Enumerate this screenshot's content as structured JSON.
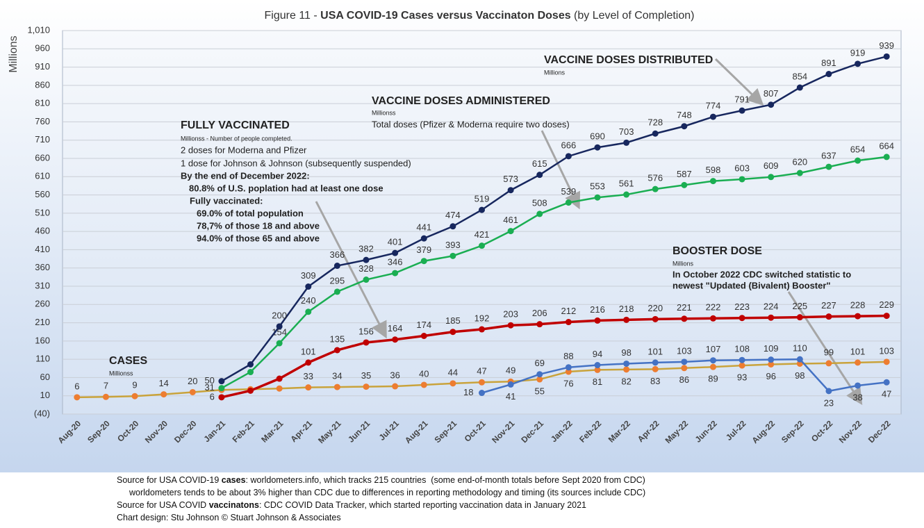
{
  "chart_data": {
    "type": "line",
    "title": [
      "Figure 11 - ",
      "USA COVID-19 Cases versus Vaccinaton Doses",
      " (by Level of Completion)"
    ],
    "y_label": "Millions",
    "categories": [
      "Aug-20",
      "Sep-20",
      "Oct-20",
      "Nov-20",
      "Dec-20",
      "Jan-21",
      "Feb-21",
      "Mar-21",
      "Apr-21",
      "May-21",
      "Jun-21",
      "Jul-21",
      "Aug-21",
      "Sep-21",
      "Oct-21",
      "Nov-21",
      "Dec-21",
      "Jan-22",
      "Feb-22",
      "Mar-22",
      "Apr-22",
      "May-22",
      "Jun-22",
      "Jul-22",
      "Aug-22",
      "Sep-22",
      "Oct-22",
      "Nov-22",
      "Dec-22"
    ],
    "ylim": [
      -40,
      1010
    ],
    "yticks": [
      {
        "value": -40,
        "label": "(40)"
      },
      10,
      60,
      110,
      160,
      210,
      260,
      310,
      360,
      410,
      460,
      510,
      560,
      610,
      660,
      710,
      760,
      810,
      860,
      910,
      960,
      {
        "value": 1010,
        "label": "1,010"
      }
    ],
    "grid": true,
    "series": [
      {
        "color": "#ed7d31",
        "line_color": "#c9a33b",
        "values": [
          6,
          7,
          9,
          14,
          20,
          26,
          28,
          30,
          33,
          34,
          35,
          36,
          40,
          44,
          47,
          49,
          55,
          76,
          81,
          82,
          83,
          86,
          89,
          93,
          96,
          98,
          99,
          101,
          103
        ],
        "value_labels": [
          "6",
          "7",
          "9",
          "14",
          "20",
          null,
          null,
          null,
          "33",
          "34",
          "35",
          "36",
          "40",
          "44",
          "47",
          "49",
          "55",
          "76",
          "81",
          "82",
          "83",
          "86",
          "89",
          "93",
          "96",
          "98",
          "99",
          "101",
          "103"
        ]
      },
      {
        "color": "#4472c4",
        "line_color": "#4472c4",
        "values": [
          null,
          null,
          null,
          null,
          null,
          null,
          null,
          null,
          null,
          null,
          null,
          null,
          null,
          null,
          18,
          41,
          69,
          88,
          94,
          98,
          101,
          103,
          107,
          108,
          109,
          110,
          23,
          38,
          47
        ],
        "value_labels": [
          null,
          null,
          null,
          null,
          null,
          null,
          null,
          null,
          null,
          null,
          null,
          null,
          null,
          null,
          "18",
          "41",
          "69",
          "88",
          "94",
          "98",
          "101",
          "103",
          "107",
          "108",
          "109",
          "110",
          "23",
          "38",
          "47"
        ]
      },
      {
        "color": "#c00000",
        "line_color": "#c00000",
        "values": [
          null,
          null,
          null,
          null,
          null,
          6,
          24,
          57,
          101,
          135,
          156,
          164,
          174,
          185,
          192,
          203,
          206,
          212,
          216,
          218,
          220,
          221,
          222,
          223,
          224,
          225,
          227,
          228,
          229
        ],
        "value_labels": [
          null,
          null,
          null,
          null,
          null,
          "6",
          null,
          null,
          "101",
          "135",
          "156",
          "164",
          "174",
          "185",
          "192",
          "203",
          "206",
          "212",
          "216",
          "218",
          "220",
          "221",
          "222",
          "223",
          "224",
          "225",
          "227",
          "228",
          "229"
        ]
      },
      {
        "color": "#1aae52",
        "line_color": "#1aae52",
        "values": [
          null,
          null,
          null,
          null,
          null,
          31,
          75,
          154,
          240,
          295,
          328,
          346,
          379,
          393,
          421,
          461,
          508,
          539,
          553,
          561,
          576,
          587,
          598,
          603,
          609,
          620,
          637,
          654,
          664
        ],
        "value_labels": [
          null,
          null,
          null,
          null,
          null,
          "31",
          null,
          "154",
          "240",
          "295",
          "328",
          "346",
          "379",
          "393",
          "421",
          "461",
          "508",
          "539",
          "553",
          "561",
          "576",
          "587",
          "598",
          "603",
          "609",
          "620",
          "637",
          "654",
          "664"
        ]
      },
      {
        "color": "#17275e",
        "line_color": "#17275e",
        "values": [
          null,
          null,
          null,
          null,
          null,
          50,
          96,
          200,
          309,
          366,
          382,
          401,
          441,
          474,
          519,
          573,
          615,
          666,
          690,
          703,
          728,
          748,
          774,
          791,
          807,
          854,
          891,
          919,
          939
        ],
        "value_labels": [
          null,
          null,
          null,
          null,
          null,
          "50",
          null,
          "200",
          "309",
          "366",
          "382",
          "401",
          "441",
          "474",
          "519",
          "573",
          "615",
          "666",
          "690",
          "703",
          "728",
          "748",
          "774",
          "791",
          "807",
          "854",
          "891",
          "919",
          "939"
        ]
      }
    ],
    "annotations": [
      {
        "title": "CASES",
        "lines": [
          {
            "text": "Millionss",
            "style": "small"
          }
        ]
      },
      {
        "title": "FULLY VACCINATED",
        "lines": [
          {
            "text": "Millionss - Number of people completed.",
            "style": "small"
          },
          {
            "text": "2 doses for Moderna and Pfizer",
            "style": "normal"
          },
          {
            "text": "1 dose for Johnson & Johnson (subsequently suspended)",
            "style": "normal"
          },
          {
            "text": "By the end of December 2022:",
            "style": "bold"
          },
          {
            "text": "80.8% of U.S. poplation had at least one dose",
            "style": "bold"
          },
          {
            "text": "Fully vaccinated:",
            "style": "bold"
          },
          {
            "text": "69.0% of total population",
            "style": "bold"
          },
          {
            "text": "78,7% of those 18 and above",
            "style": "bold"
          },
          {
            "text": "94.0% of those 65 and above",
            "style": "bold"
          }
        ]
      },
      {
        "title": "VACCINE DOSES ADMINISTERED",
        "lines": [
          {
            "text": "Millionss",
            "style": "small"
          },
          {
            "text": "Total doses (Pfizer & Moderna require two doses)",
            "style": "normal"
          }
        ]
      },
      {
        "title": "VACCINE DOSES DISTRIBUTED",
        "lines": [
          {
            "text": "Millions",
            "style": "small"
          }
        ]
      },
      {
        "title": "BOOSTER DOSE",
        "lines": [
          {
            "text": "Millions",
            "style": "small"
          },
          {
            "text": "In October 2022 CDC switched statistic to",
            "style": "bold"
          },
          {
            "text": "newest \"Updated (Bivalent) Booster\"",
            "style": "bold"
          }
        ]
      }
    ],
    "footer": [
      [
        "Source for USA COVID-19 ",
        "cases",
        ": worldometers.info, which tracks 215 countries  (some end-of-month totals before Sept 2020 from CDC)"
      ],
      [
        "worldometers tends to be about 3% higher than CDC due to differences in reporting methodology and timing (its sources include CDC)"
      ],
      [
        "Source for USA COVID ",
        "vaccinatons",
        ": CDC COVID Data Tracker, which started reporting vaccination data in January 2021"
      ],
      [
        "Chart design: Stu Johnson © Stuart Johnson & Associates"
      ]
    ]
  }
}
